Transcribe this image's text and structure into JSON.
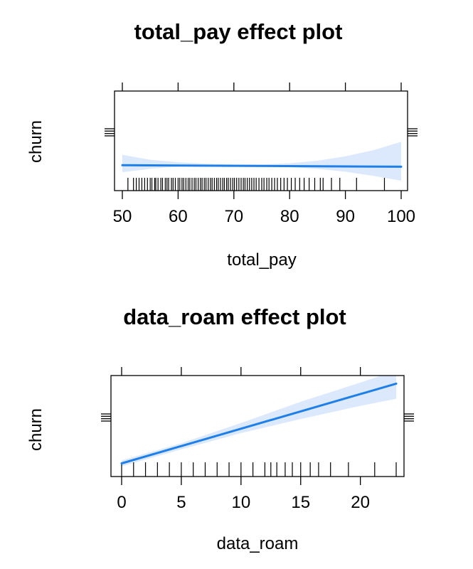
{
  "chart_data": [
    {
      "type": "line",
      "title": "total_pay effect plot",
      "xlabel": "total_pay",
      "ylabel": "churn",
      "xlim": [
        50,
        100
      ],
      "xticks": [
        "50",
        "60",
        "70",
        "80",
        "90",
        "100"
      ],
      "grid": false,
      "legend": "none",
      "line_color": "#1f7fe8",
      "band_color": "#dce9fc",
      "series": [
        {
          "x": [
            50,
            100
          ],
          "y": [
            0.255,
            0.24
          ]
        }
      ],
      "confidence_band": {
        "x": [
          50,
          55,
          60,
          65,
          70,
          75,
          80,
          85,
          90,
          95,
          100
        ],
        "lower": [
          0.185,
          0.22,
          0.24,
          0.248,
          0.25,
          0.246,
          0.236,
          0.218,
          0.19,
          0.148,
          0.1
        ],
        "upper": [
          0.36,
          0.31,
          0.285,
          0.27,
          0.262,
          0.263,
          0.275,
          0.3,
          0.345,
          0.405,
          0.49
        ]
      },
      "rug": [
        51,
        52,
        52.5,
        53,
        53.5,
        54,
        54.5,
        55,
        55.3,
        55.8,
        56,
        56.4,
        56.9,
        57.2,
        57.7,
        58,
        58.3,
        58.8,
        59.1,
        59.5,
        60,
        60.3,
        60.7,
        61,
        61.4,
        61.8,
        62.1,
        62.5,
        62.9,
        63.2,
        63.6,
        64,
        64.3,
        64.7,
        65,
        65.4,
        65.8,
        66.1,
        66.5,
        66.9,
        67.2,
        67.6,
        68,
        68.3,
        68.7,
        69,
        69.4,
        69.8,
        70.1,
        70.5,
        70.9,
        71.3,
        71.7,
        72,
        72.4,
        72.8,
        73.2,
        73.6,
        74,
        74.5,
        75,
        75.4,
        75.9,
        76.3,
        76.8,
        77.3,
        77.8,
        78.4,
        79,
        79.6,
        80.3,
        81,
        81.8,
        82.6,
        83.5,
        84.5,
        85.5,
        86,
        87.5,
        89,
        92,
        97
      ]
    },
    {
      "type": "line",
      "title": "data_roam effect plot",
      "xlabel": "data_roam",
      "ylabel": "churn",
      "xlim": [
        0,
        23
      ],
      "xticks": [
        "0",
        "5",
        "10",
        "15",
        "20"
      ],
      "grid": false,
      "legend": "none",
      "line_color": "#1f7fe8",
      "band_color": "#dce9fc",
      "series": [
        {
          "x": [
            0,
            23
          ],
          "y": [
            0.13,
            0.92
          ]
        }
      ],
      "confidence_band": {
        "x": [
          0,
          5,
          10,
          15,
          20,
          23
        ],
        "lower": [
          0.1,
          0.27,
          0.43,
          0.57,
          0.7,
          0.77
        ],
        "upper": [
          0.16,
          0.33,
          0.53,
          0.74,
          0.93,
          1.05
        ]
      },
      "rug": [
        0,
        1,
        2,
        3,
        4,
        5,
        6,
        7,
        8,
        9,
        10,
        11,
        12,
        12.5,
        13,
        13.7,
        14.3,
        15,
        15.8,
        16.5,
        17.5,
        19,
        21.2,
        23
      ]
    }
  ]
}
